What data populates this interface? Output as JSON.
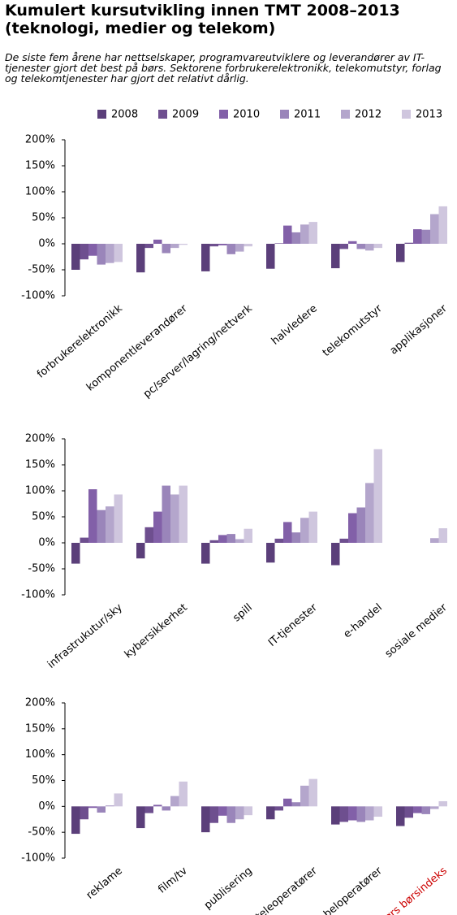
{
  "title": "Kumulert kursutvikling innen TMT 2008–2013 (teknologi, medier og telekom)",
  "subtitle": "De siste fem årene har nettselskaper, programvareutviklere og leverandører av IT-tjenester gjort det best på børs. Sektorene forbrukerelektronikk, telekomutstyr, forlag og telekomtjenester har gjort det relativt dårlig.",
  "chart_data": [
    {
      "type": "bar",
      "categories": [
        "forbrukerelektronikk",
        "komponentleverandører",
        "pc/server/lagring/nettverk",
        "halvledere",
        "telekomutstyr",
        "applikasjoner"
      ],
      "series": [
        {
          "name": "2008",
          "color": "#5b3f7a",
          "values": [
            -50,
            -55,
            -53,
            -48,
            -47,
            -35
          ]
        },
        {
          "name": "2009",
          "color": "#6e4f8f",
          "values": [
            -30,
            -8,
            -5,
            1,
            -10,
            2
          ]
        },
        {
          "name": "2010",
          "color": "#8260a8",
          "values": [
            -23,
            8,
            -3,
            35,
            5,
            28
          ]
        },
        {
          "name": "2011",
          "color": "#9a85ba",
          "values": [
            -40,
            -18,
            -20,
            22,
            -10,
            27
          ]
        },
        {
          "name": "2012",
          "color": "#b4a6cc",
          "values": [
            -37,
            -8,
            -15,
            37,
            -13,
            57
          ]
        },
        {
          "name": "2013",
          "color": "#cfc6de",
          "values": [
            -35,
            -2,
            -5,
            42,
            -8,
            72
          ]
        }
      ],
      "ylim": [
        -100,
        200
      ],
      "yticks": [
        {
          "value": -100,
          "label": "-100%"
        },
        {
          "value": -50,
          "label": "-50%"
        },
        {
          "value": 0,
          "label": "0%"
        },
        {
          "value": 50,
          "label": "50%"
        },
        {
          "value": 100,
          "label": "100%"
        },
        {
          "value": 150,
          "label": "150%"
        },
        {
          "value": 200,
          "label": "200%"
        }
      ]
    },
    {
      "type": "bar",
      "categories": [
        "infrastrukutur/sky",
        "kybersikkerhet",
        "spill",
        "IT-tjenester",
        "e-handel",
        "sosiale medier"
      ],
      "series": [
        {
          "name": "2008",
          "color": "#5b3f7a",
          "values": [
            -40,
            -30,
            -40,
            -38,
            -43,
            null
          ]
        },
        {
          "name": "2009",
          "color": "#6e4f8f",
          "values": [
            10,
            30,
            5,
            8,
            8,
            null
          ]
        },
        {
          "name": "2010",
          "color": "#8260a8",
          "values": [
            103,
            60,
            15,
            40,
            57,
            null
          ]
        },
        {
          "name": "2011",
          "color": "#9a85ba",
          "values": [
            63,
            110,
            17,
            20,
            68,
            null
          ]
        },
        {
          "name": "2012",
          "color": "#b4a6cc",
          "values": [
            70,
            93,
            7,
            48,
            115,
            9
          ]
        },
        {
          "name": "2013",
          "color": "#cfc6de",
          "values": [
            93,
            110,
            27,
            60,
            180,
            28
          ]
        }
      ],
      "ylim": [
        -100,
        200
      ],
      "yticks": [
        {
          "value": -100,
          "label": "-100%"
        },
        {
          "value": -50,
          "label": "-50%"
        },
        {
          "value": 0,
          "label": "0%"
        },
        {
          "value": 50,
          "label": "50%"
        },
        {
          "value": 100,
          "label": "100%"
        },
        {
          "value": 150,
          "label": "150%"
        },
        {
          "value": 200,
          "label": "200%"
        }
      ]
    },
    {
      "type": "bar",
      "categories": [
        "reklame",
        "film/tv",
        "publisering",
        "teleoperatører",
        "kabeloperatører",
        "Oslo Børs børsindeks"
      ],
      "label_colors": [
        "#000000",
        "#000000",
        "#000000",
        "#000000",
        "#000000",
        "#cc0000"
      ],
      "series": [
        {
          "name": "2008",
          "color": "#5b3f7a",
          "values": [
            -53,
            -42,
            -50,
            -25,
            -35,
            -38
          ]
        },
        {
          "name": "2009",
          "color": "#6e4f8f",
          "values": [
            -25,
            -13,
            -32,
            -8,
            -30,
            -22
          ]
        },
        {
          "name": "2010",
          "color": "#8260a8",
          "values": [
            -3,
            3,
            -18,
            15,
            -27,
            -13
          ]
        },
        {
          "name": "2011",
          "color": "#9a85ba",
          "values": [
            -12,
            -8,
            -32,
            8,
            -30,
            -15
          ]
        },
        {
          "name": "2012",
          "color": "#b4a6cc",
          "values": [
            2,
            20,
            -25,
            40,
            -27,
            -5
          ]
        },
        {
          "name": "2013",
          "color": "#cfc6de",
          "values": [
            25,
            48,
            -17,
            53,
            -20,
            10
          ]
        }
      ],
      "ylim": [
        -100,
        200
      ],
      "yticks": [
        {
          "value": -100,
          "label": "-100%"
        },
        {
          "value": -50,
          "label": "-50%"
        },
        {
          "value": 0,
          "label": "0%"
        },
        {
          "value": 50,
          "label": "50%"
        },
        {
          "value": 100,
          "label": "100%"
        },
        {
          "value": 150,
          "label": "150%"
        },
        {
          "value": 200,
          "label": "200%"
        }
      ]
    }
  ]
}
